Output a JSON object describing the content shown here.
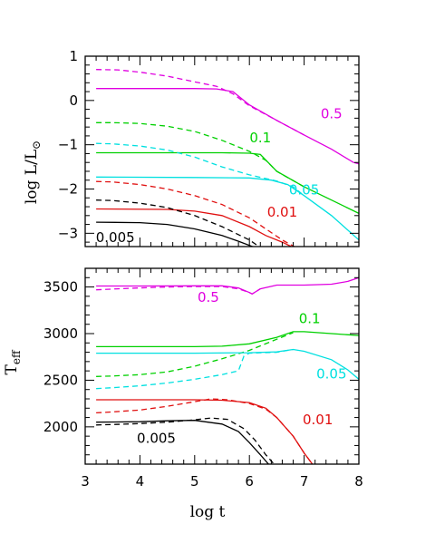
{
  "chart_data": [
    {
      "type": "line",
      "panel": "top",
      "ylabel": "log  L/L",
      "ylabel_sub": "⊙",
      "xlim": [
        3,
        8
      ],
      "ylim": [
        -3.3,
        1
      ],
      "yticks": [
        1,
        0,
        -1,
        -2,
        -3
      ],
      "ytick_labels": [
        "1",
        "0",
        "−1",
        "−2",
        "−3"
      ],
      "series": [
        {
          "name": "0.5",
          "color": "#e000e0",
          "style": "solid",
          "x": [
            3.2,
            5.0,
            5.4,
            5.7,
            6.0,
            6.5,
            7.0,
            7.5,
            7.9,
            8.0
          ],
          "y": [
            0.27,
            0.27,
            0.26,
            0.2,
            -0.1,
            -0.45,
            -0.78,
            -1.1,
            -1.4,
            -1.43
          ]
        },
        {
          "name": "0.5",
          "color": "#e000e0",
          "style": "dashed",
          "x": [
            3.2,
            3.6,
            4.0,
            4.5,
            5.0,
            5.4,
            5.7,
            6.0,
            6.5,
            7.0
          ],
          "y": [
            0.7,
            0.69,
            0.64,
            0.55,
            0.42,
            0.32,
            0.15,
            -0.12,
            -0.45,
            -0.78
          ]
        },
        {
          "name": "0.1",
          "color": "#00d000",
          "style": "solid",
          "x": [
            3.2,
            5.5,
            6.0,
            6.2,
            6.5,
            7.0,
            7.5,
            8.0
          ],
          "y": [
            -1.18,
            -1.18,
            -1.19,
            -1.22,
            -1.6,
            -1.95,
            -2.25,
            -2.55
          ]
        },
        {
          "name": "0.1",
          "color": "#00d000",
          "style": "dashed",
          "x": [
            3.2,
            3.5,
            4.0,
            4.5,
            5.0,
            5.5,
            6.0,
            6.3,
            6.5,
            7.0
          ],
          "y": [
            -0.5,
            -0.5,
            -0.52,
            -0.58,
            -0.7,
            -0.9,
            -1.15,
            -1.35,
            -1.6,
            -1.95
          ]
        },
        {
          "name": "0.05",
          "color": "#00e0e0",
          "style": "solid",
          "x": [
            3.2,
            5.0,
            6.0,
            6.4,
            6.7,
            7.0,
            7.5,
            8.0
          ],
          "y": [
            -1.73,
            -1.74,
            -1.75,
            -1.8,
            -1.9,
            -2.15,
            -2.6,
            -3.15
          ]
        },
        {
          "name": "0.05",
          "color": "#00e0e0",
          "style": "dashed",
          "x": [
            3.2,
            3.5,
            4.0,
            4.5,
            5.0,
            5.5,
            6.0,
            6.5,
            6.8,
            7.0
          ],
          "y": [
            -0.97,
            -0.98,
            -1.03,
            -1.12,
            -1.28,
            -1.5,
            -1.68,
            -1.82,
            -1.95,
            -2.15
          ]
        },
        {
          "name": "0.01",
          "color": "#e01010",
          "style": "solid",
          "x": [
            3.2,
            4.5,
            5.0,
            5.5,
            6.0,
            6.3,
            6.6,
            6.8
          ],
          "y": [
            -2.45,
            -2.46,
            -2.5,
            -2.6,
            -2.85,
            -3.05,
            -3.2,
            -3.32
          ]
        },
        {
          "name": "0.01",
          "color": "#e01010",
          "style": "dashed",
          "x": [
            3.2,
            3.5,
            4.0,
            4.5,
            5.0,
            5.5,
            6.0,
            6.3,
            6.6,
            6.85
          ],
          "y": [
            -1.83,
            -1.84,
            -1.9,
            -2.0,
            -2.15,
            -2.35,
            -2.65,
            -2.9,
            -3.15,
            -3.32
          ]
        },
        {
          "name": "0.005",
          "color": "#000000",
          "style": "solid",
          "x": [
            3.2,
            4.0,
            4.5,
            5.0,
            5.5,
            5.8,
            6.1
          ],
          "y": [
            -2.75,
            -2.76,
            -2.8,
            -2.9,
            -3.05,
            -3.18,
            -3.32
          ]
        },
        {
          "name": "0.005",
          "color": "#000000",
          "style": "dashed",
          "x": [
            3.2,
            3.5,
            4.0,
            4.5,
            5.0,
            5.5,
            6.0,
            6.2
          ],
          "y": [
            -2.25,
            -2.26,
            -2.32,
            -2.42,
            -2.6,
            -2.85,
            -3.15,
            -3.32
          ]
        }
      ],
      "annotations": [
        {
          "text": "0.5",
          "x": 7.5,
          "y": -0.4,
          "color": "#e000e0"
        },
        {
          "text": "0.1",
          "x": 6.2,
          "y": -0.95,
          "color": "#00d000"
        },
        {
          "text": "0.05",
          "x": 7.0,
          "y": -2.12,
          "color": "#00e0e0"
        },
        {
          "text": "0.01",
          "x": 6.6,
          "y": -2.62,
          "color": "#e01010"
        },
        {
          "text": "0.005",
          "x": 3.55,
          "y": -3.2,
          "color": "#000000"
        }
      ]
    },
    {
      "type": "line",
      "panel": "bottom",
      "ylabel": "T",
      "ylabel_sub": "eff",
      "xlabel": "log  t",
      "xlim": [
        3,
        8
      ],
      "ylim": [
        1600,
        3700
      ],
      "xticks": [
        3,
        4,
        5,
        6,
        7,
        8
      ],
      "xtick_labels": [
        "3",
        "4",
        "5",
        "6",
        "7",
        "8"
      ],
      "yticks": [
        2000,
        2500,
        3000,
        3500
      ],
      "ytick_labels": [
        "2000",
        "2500",
        "3000",
        "3500"
      ],
      "series": [
        {
          "name": "0.5",
          "color": "#e000e0",
          "style": "solid",
          "x": [
            3.2,
            4.0,
            5.0,
            5.5,
            5.8,
            6.0,
            6.05,
            6.2,
            6.5,
            7.0,
            7.5,
            7.8,
            8.0
          ],
          "y": [
            3510,
            3510,
            3512,
            3512,
            3490,
            3440,
            3425,
            3480,
            3520,
            3520,
            3530,
            3560,
            3600
          ]
        },
        {
          "name": "0.5",
          "color": "#e000e0",
          "style": "dashed",
          "x": [
            3.2,
            3.6,
            4.0,
            4.5,
            5.0,
            5.5,
            5.8,
            6.0,
            6.05,
            6.2
          ],
          "y": [
            3470,
            3480,
            3490,
            3500,
            3505,
            3505,
            3480,
            3440,
            3425,
            3480
          ]
        },
        {
          "name": "0.1",
          "color": "#00d000",
          "style": "solid",
          "x": [
            3.2,
            5.0,
            5.5,
            6.0,
            6.5,
            6.8,
            7.0,
            7.5,
            8.0
          ],
          "y": [
            2860,
            2860,
            2865,
            2890,
            2960,
            3020,
            3020,
            3000,
            2980
          ]
        },
        {
          "name": "0.1",
          "color": "#00d000",
          "style": "dashed",
          "x": [
            3.2,
            3.5,
            4.0,
            4.5,
            5.0,
            5.5,
            6.0,
            6.5,
            6.8
          ],
          "y": [
            2540,
            2545,
            2560,
            2590,
            2650,
            2730,
            2820,
            2940,
            3010
          ]
        },
        {
          "name": "0.05",
          "color": "#00e0e0",
          "style": "solid",
          "x": [
            3.2,
            5.0,
            6.0,
            6.5,
            6.8,
            7.0,
            7.5,
            7.8,
            8.0
          ],
          "y": [
            2790,
            2790,
            2795,
            2805,
            2830,
            2810,
            2720,
            2610,
            2510
          ]
        },
        {
          "name": "0.05",
          "color": "#00e0e0",
          "style": "dashed",
          "x": [
            3.2,
            3.5,
            4.0,
            4.5,
            5.0,
            5.5,
            5.8,
            5.9,
            6.0,
            6.5,
            6.8
          ],
          "y": [
            2410,
            2420,
            2440,
            2470,
            2510,
            2560,
            2600,
            2760,
            2790,
            2800,
            2830
          ]
        },
        {
          "name": "0.01",
          "color": "#e01010",
          "style": "solid",
          "x": [
            3.2,
            5.0,
            5.5,
            6.0,
            6.3,
            6.5,
            6.8,
            7.0,
            7.15
          ],
          "y": [
            2290,
            2290,
            2285,
            2260,
            2200,
            2100,
            1900,
            1720,
            1600
          ]
        },
        {
          "name": "0.01",
          "color": "#e01010",
          "style": "dashed",
          "x": [
            3.2,
            3.5,
            4.0,
            4.5,
            5.0,
            5.3,
            5.6,
            6.0,
            6.3,
            6.5,
            6.8,
            7.0,
            7.15
          ],
          "y": [
            2150,
            2160,
            2180,
            2220,
            2270,
            2300,
            2290,
            2250,
            2190,
            2100,
            1900,
            1720,
            1600
          ]
        },
        {
          "name": "0.005",
          "color": "#000000",
          "style": "solid",
          "x": [
            3.2,
            4.0,
            4.5,
            5.0,
            5.5,
            5.8,
            6.0,
            6.2,
            6.35
          ],
          "y": [
            2050,
            2055,
            2065,
            2070,
            2030,
            1950,
            1830,
            1700,
            1600
          ]
        },
        {
          "name": "0.005",
          "color": "#000000",
          "style": "dashed",
          "x": [
            3.2,
            3.5,
            4.0,
            4.5,
            5.0,
            5.3,
            5.6,
            5.9,
            6.1,
            6.3,
            6.45
          ],
          "y": [
            2020,
            2025,
            2035,
            2050,
            2075,
            2095,
            2080,
            1980,
            1860,
            1700,
            1600
          ]
        }
      ],
      "annotations": [
        {
          "text": "0.5",
          "x": 5.25,
          "y": 3340,
          "color": "#e000e0"
        },
        {
          "text": "0.1",
          "x": 7.1,
          "y": 3110,
          "color": "#00d000"
        },
        {
          "text": "0.05",
          "x": 7.5,
          "y": 2520,
          "color": "#00e0e0"
        },
        {
          "text": "0.01",
          "x": 7.25,
          "y": 2030,
          "color": "#e01010"
        },
        {
          "text": "0.005",
          "x": 4.3,
          "y": 1830,
          "color": "#000000"
        }
      ]
    }
  ]
}
